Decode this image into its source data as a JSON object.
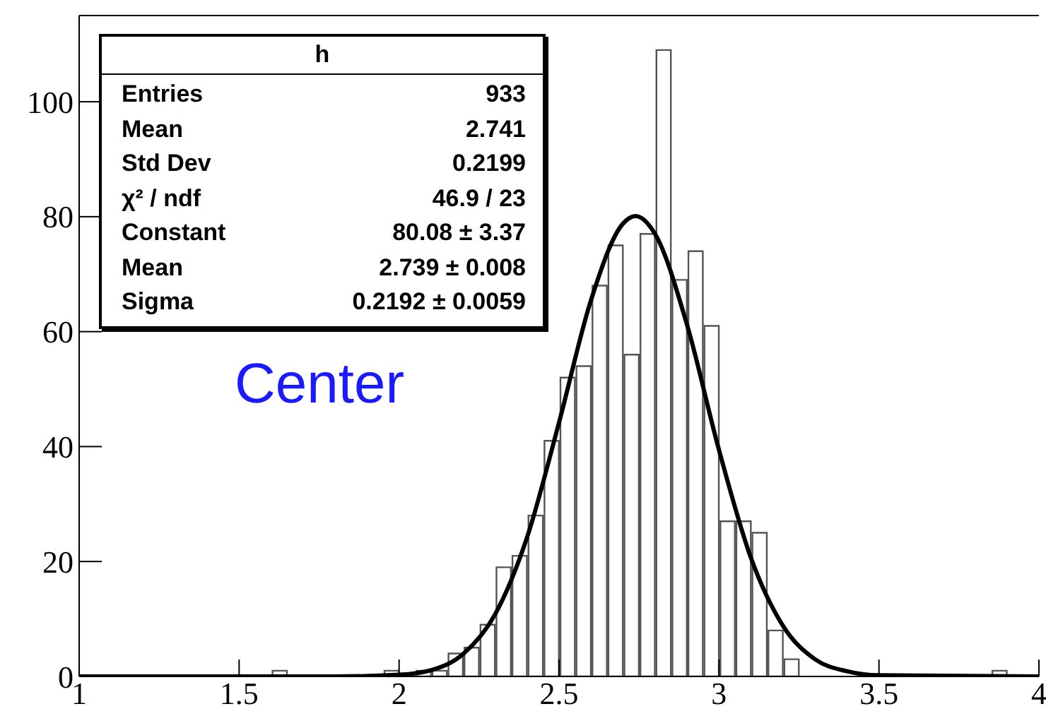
{
  "chart_data": {
    "type": "histogram",
    "series": [
      {
        "type": "histogram",
        "color": "#555555",
        "bins": [
          1,
          1.05,
          1.1,
          1.15,
          1.2,
          1.25,
          1.3,
          1.35,
          1.4,
          1.45,
          1.5,
          1.55,
          1.6,
          1.65,
          1.7,
          1.75,
          1.8,
          1.85,
          1.9,
          1.95,
          2,
          2.05,
          2.1,
          2.15,
          2.2,
          2.25,
          2.3,
          2.35,
          2.4,
          2.45,
          2.5,
          2.55,
          2.6,
          2.65,
          2.7,
          2.75,
          2.8,
          2.85,
          2.9,
          2.95,
          3,
          3.05,
          3.1,
          3.15,
          3.2,
          3.25,
          3.3,
          3.35,
          3.4,
          3.45,
          3.5,
          3.55,
          3.6,
          3.65,
          3.7,
          3.75,
          3.8,
          3.85,
          3.9,
          3.95,
          4
        ],
        "values": [
          0,
          0,
          0,
          0,
          0,
          0,
          0,
          0,
          0,
          0,
          0,
          0,
          1,
          0,
          0,
          0,
          0,
          0,
          0,
          1,
          0,
          1,
          1,
          4,
          5,
          9,
          19,
          21,
          28,
          41,
          52,
          54,
          68,
          75,
          56,
          77,
          109,
          69,
          74,
          61,
          27,
          27,
          25,
          8,
          3,
          0,
          0,
          0,
          0,
          0,
          0,
          0,
          0,
          0,
          0,
          0,
          0,
          1,
          0,
          0
        ]
      },
      {
        "type": "line",
        "color": "#000000",
        "x": [
          1,
          1.8,
          2,
          2.1,
          2.2,
          2.3,
          2.4,
          2.5,
          2.6,
          2.7,
          2.739,
          2.8,
          2.9,
          3,
          3.1,
          3.2,
          3.3,
          3.4,
          3.5,
          4
        ],
        "values": [
          0,
          0,
          0.3,
          1.1,
          3.9,
          10.8,
          24.2,
          44.2,
          65.5,
          78.8,
          80.1,
          77,
          61.2,
          39.4,
          20.6,
          8.8,
          3,
          0.9,
          0.2,
          0
        ]
      }
    ],
    "xlim": [
      1,
      4
    ],
    "xticks": [
      1,
      1.5,
      2,
      2.5,
      3,
      3.5,
      4
    ],
    "ylim": [
      0,
      115
    ],
    "yticks": [
      0,
      20,
      40,
      60,
      80,
      100
    ],
    "grid": false,
    "legend": false,
    "marker": "none",
    "line_style": "solid",
    "annotations": [
      "h",
      "Entries",
      "933",
      "Mean",
      "2.741",
      "Std Dev",
      "0.2199",
      "χ² / ndf",
      "46.9 / 23",
      "Constant",
      "80.08 ± 3.37",
      "Mean",
      "2.739 ± 0.008",
      "Sigma",
      "0.2192 ± 0.0059",
      "Center"
    ]
  }
}
